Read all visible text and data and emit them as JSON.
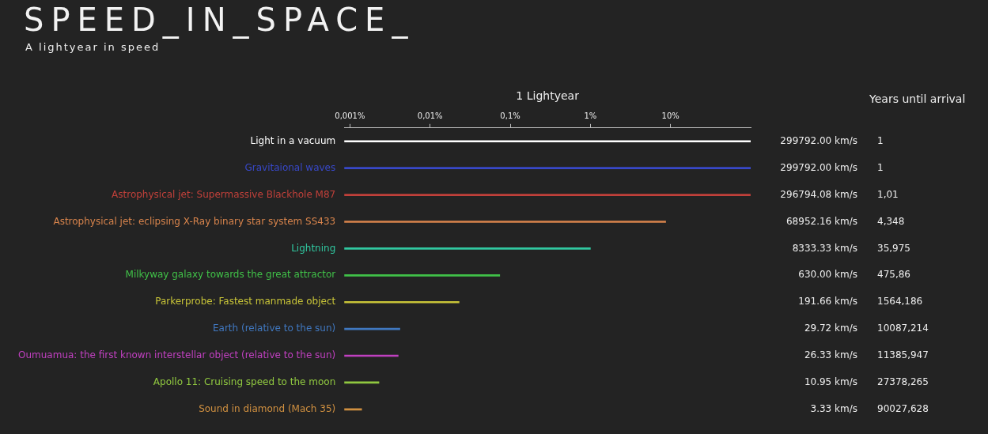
{
  "chart_data": {
    "type": "bar",
    "orientation": "horizontal",
    "title": "SPEED_IN_SPACE_",
    "subtitle": "A lightyear in speed",
    "xlabel": "1 Lightyear",
    "log": "x",
    "categories": [
      "Light in a vacuum",
      "Gravitaional waves",
      "Astrophysical jet: Supermassive Blackhole M87",
      "Astrophysical jet: eclipsing X-Ray binary star system SS433",
      "Lightning",
      "Milkyway galaxy towards the great attractor",
      "Parkerprobe: Fastest manmade object",
      "Earth (relative to the sun)",
      "Oumuamua: the first known interstellar object (relative to the sun)",
      "Apollo 11: Cruising speed to the moon",
      "Sound in diamond (Mach 35)"
    ],
    "values": [
      100,
      100,
      99,
      8.7,
      1,
      0.074,
      0.023,
      0.0042,
      0.004,
      0.0023,
      0.0014
    ],
    "colors": [
      "#ffffff",
      "#3848c8",
      "#c0403a",
      "#d8844c",
      "#30c8a0",
      "#40c048",
      "#c8c438",
      "#4078c0",
      "#c040c0",
      "#90c840",
      "#d09040"
    ],
    "xlim": [
      0.00085,
      100
    ],
    "xticks": [
      {
        "value": 0.001,
        "label": "0,001%"
      },
      {
        "value": 0.01,
        "label": "0,01%"
      },
      {
        "value": 0.1,
        "label": "0,1%"
      },
      {
        "value": 1,
        "label": "1%"
      },
      {
        "value": 10,
        "label": "10%"
      }
    ],
    "annotations": [
      "Years until arrival",
      "1",
      "1",
      "1,01",
      "4,348",
      "35,975",
      "475,86",
      "1564,186",
      "10087,214",
      "11385,947",
      "27378,265",
      "90027,628",
      "299792.00 km/s",
      "299792.00 km/s",
      "296794.08 km/s",
      "68952.16 km/s",
      "8333.33 km/s",
      "630.00 km/s",
      "191.66 km/s",
      "29.72 km/s",
      "26.33 km/s",
      "10.95 km/s",
      "3.33 km/s"
    ]
  }
}
